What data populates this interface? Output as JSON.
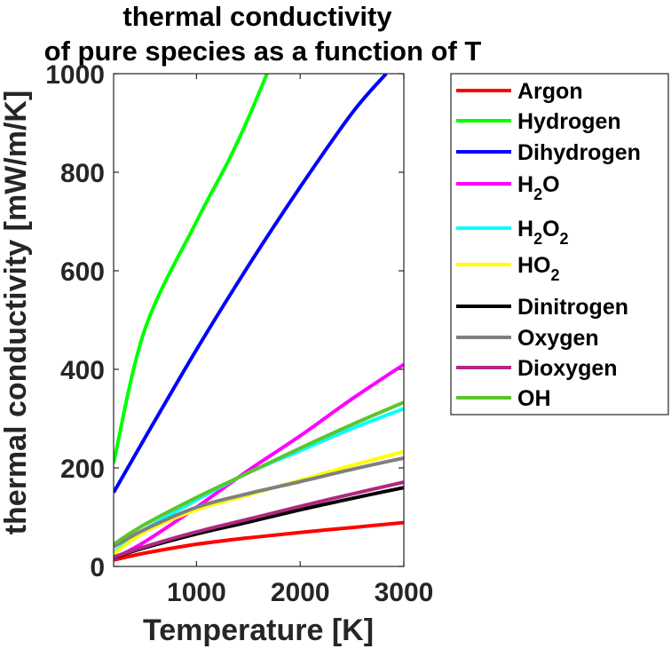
{
  "chart_data": {
    "type": "line",
    "title": [
      "thermal conductivity",
      "of pure species as a function of T"
    ],
    "xlabel": "Temperature [K]",
    "ylabel": "thermal conductivity [mW/m/K]",
    "xlim": [
      200,
      3000
    ],
    "ylim": [
      0,
      1000
    ],
    "xticks": [
      1000,
      2000,
      3000
    ],
    "xtick_labels": [
      "1000",
      "2000",
      "3000"
    ],
    "yticks": [
      0,
      200,
      400,
      600,
      800,
      1000
    ],
    "ytick_labels": [
      "0",
      "200",
      "400",
      "600",
      "800",
      "1000"
    ],
    "grid": false,
    "legend_position": "outside-right",
    "series": [
      {
        "name": "Argon",
        "label_parts": [
          "Argon"
        ],
        "color": "#ff0000",
        "x": [
          200,
          500,
          1000,
          1500,
          2000,
          2500,
          3000
        ],
        "y": [
          13,
          27,
          45,
          58,
          69,
          79,
          89
        ]
      },
      {
        "name": "Hydrogen",
        "label_parts": [
          "Hydrogen"
        ],
        "color": "#00ff00",
        "x": [
          200,
          500,
          1000,
          1300,
          1500,
          1680
        ],
        "y": [
          210,
          480,
          700,
          820,
          910,
          1000
        ]
      },
      {
        "name": "Dihydrogen",
        "label_parts": [
          "Dihydrogen"
        ],
        "color": "#0000ff",
        "x": [
          200,
          500,
          1000,
          1500,
          2000,
          2500,
          2830
        ],
        "y": [
          150,
          260,
          440,
          610,
          770,
          920,
          1000
        ]
      },
      {
        "name": "H2O",
        "label_parts": [
          "H",
          "2",
          "O"
        ],
        "color": "#ff00ff",
        "x": [
          200,
          500,
          1000,
          1500,
          2000,
          2500,
          3000
        ],
        "y": [
          16,
          50,
          120,
          195,
          265,
          340,
          410
        ]
      },
      {
        "name": "H2O2",
        "label_parts": [
          "H",
          "2",
          "O",
          "2"
        ],
        "color": "#00ffff",
        "x": [
          200,
          500,
          1000,
          1500,
          2000,
          2500,
          3000
        ],
        "y": [
          28,
          75,
          135,
          190,
          235,
          280,
          320
        ]
      },
      {
        "name": "HO2",
        "label_parts": [
          "HO",
          "2"
        ],
        "color": "#ffff00",
        "x": [
          200,
          500,
          1000,
          1500,
          2000,
          2500,
          3000
        ],
        "y": [
          25,
          70,
          115,
          145,
          175,
          205,
          233
        ]
      },
      {
        "name": "Dinitrogen",
        "label_parts": [
          "Dinitrogen"
        ],
        "color": "#000000",
        "x": [
          200,
          500,
          1000,
          1500,
          2000,
          2500,
          3000
        ],
        "y": [
          18,
          38,
          66,
          90,
          115,
          138,
          160
        ]
      },
      {
        "name": "Oxygen",
        "label_parts": [
          "Oxygen"
        ],
        "color": "#808080",
        "x": [
          200,
          500,
          1000,
          1500,
          2000,
          2500,
          3000
        ],
        "y": [
          40,
          75,
          120,
          148,
          172,
          197,
          220
        ]
      },
      {
        "name": "Dioxygen",
        "label_parts": [
          "Dioxygen"
        ],
        "color": "#b0287f",
        "x": [
          200,
          500,
          1000,
          1500,
          2000,
          2500,
          3000
        ],
        "y": [
          19,
          40,
          70,
          96,
          122,
          147,
          171
        ]
      },
      {
        "name": "OH",
        "label_parts": [
          "OH"
        ],
        "color": "#5bc52a",
        "x": [
          200,
          500,
          1000,
          1500,
          2000,
          2500,
          3000
        ],
        "y": [
          45,
          85,
          140,
          190,
          240,
          288,
          333
        ]
      }
    ]
  }
}
